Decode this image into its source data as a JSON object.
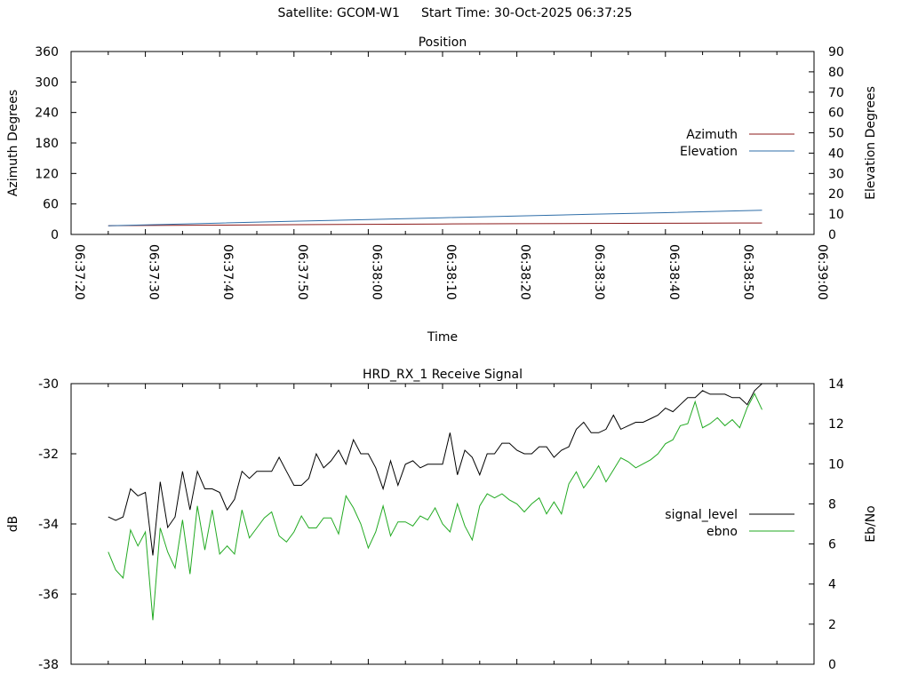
{
  "header": {
    "satellite": "Satellite: GCOM-W1",
    "start_time": "Start Time: 30-Oct-2025 06:37:25"
  },
  "chart_data": [
    {
      "type": "line",
      "title": "Position",
      "xlabel": "Time",
      "ylabel": "Azimuth Degrees",
      "y2label": "Elevation Degrees",
      "xlim": [
        "06:37:20",
        "06:39:00"
      ],
      "ylim": [
        0,
        360
      ],
      "y2lim": [
        0,
        90
      ],
      "x_tick_labels": [
        "06:37:20",
        "06:37:30",
        "06:37:40",
        "06:37:50",
        "06:38:00",
        "06:38:10",
        "06:38:20",
        "06:38:30",
        "06:38:40",
        "06:38:50",
        "06:39:00"
      ],
      "y_tick_labels": [
        "0",
        "60",
        "120",
        "180",
        "240",
        "300",
        "360"
      ],
      "y2_tick_labels": [
        "0",
        "10",
        "20",
        "30",
        "40",
        "50",
        "60",
        "70",
        "80",
        "90"
      ],
      "legend_position": "right",
      "series": [
        {
          "name": "Azimuth",
          "axis": "y",
          "color": "#8b1a1a",
          "x": [
            "06:37:25",
            "06:37:30",
            "06:37:40",
            "06:37:50",
            "06:38:00",
            "06:38:10",
            "06:38:20",
            "06:38:30",
            "06:38:40",
            "06:38:50",
            "06:38:53"
          ],
          "values": [
            17.2,
            17.6,
            18.4,
            19.2,
            20.0,
            20.6,
            21.2,
            21.7,
            22.1,
            22.5,
            22.6
          ]
        },
        {
          "name": "Elevation",
          "axis": "y2",
          "color": "#2f6ea8",
          "x": [
            "06:37:25",
            "06:37:30",
            "06:37:40",
            "06:37:50",
            "06:38:00",
            "06:38:10",
            "06:38:20",
            "06:38:30",
            "06:38:40",
            "06:38:50",
            "06:38:53"
          ],
          "values": [
            4.3,
            4.7,
            5.6,
            6.5,
            7.3,
            8.2,
            9.1,
            9.9,
            10.7,
            11.6,
            11.9
          ]
        }
      ]
    },
    {
      "type": "line",
      "title": "HRD_RX_1 Receive Signal",
      "xlabel": "",
      "ylabel": "dB",
      "y2label": "Eb/No",
      "xlim": [
        "06:37:20",
        "06:39:00"
      ],
      "ylim": [
        -38,
        -30
      ],
      "y2lim": [
        0,
        14
      ],
      "y_tick_labels": [
        "-38",
        "-36",
        "-34",
        "-32",
        "-30"
      ],
      "y2_tick_labels": [
        "0",
        "2",
        "4",
        "6",
        "8",
        "10",
        "12",
        "14"
      ],
      "legend_position": "right",
      "series": [
        {
          "name": "signal_level",
          "axis": "y",
          "color": "#000000",
          "x": [
            "06:37:25",
            "06:37:26",
            "06:37:27",
            "06:37:28",
            "06:37:29",
            "06:37:30",
            "06:37:31",
            "06:37:32",
            "06:37:33",
            "06:37:34",
            "06:37:35",
            "06:37:36",
            "06:37:37",
            "06:37:38",
            "06:37:39",
            "06:37:40",
            "06:37:41",
            "06:37:42",
            "06:37:43",
            "06:37:44",
            "06:37:45",
            "06:37:46",
            "06:37:47",
            "06:37:48",
            "06:37:49",
            "06:37:50",
            "06:37:51",
            "06:37:52",
            "06:37:53",
            "06:37:54",
            "06:37:55",
            "06:37:56",
            "06:37:57",
            "06:37:58",
            "06:37:59",
            "06:38:00",
            "06:38:01",
            "06:38:02",
            "06:38:03",
            "06:38:04",
            "06:38:05",
            "06:38:06",
            "06:38:07",
            "06:38:08",
            "06:38:09",
            "06:38:10",
            "06:38:11",
            "06:38:12",
            "06:38:13",
            "06:38:14",
            "06:38:15",
            "06:38:16",
            "06:38:17",
            "06:38:18",
            "06:38:19",
            "06:38:20",
            "06:38:21",
            "06:38:22",
            "06:38:23",
            "06:38:24",
            "06:38:25",
            "06:38:26",
            "06:38:27",
            "06:38:28",
            "06:38:29",
            "06:38:30",
            "06:38:31",
            "06:38:32",
            "06:38:33",
            "06:38:34",
            "06:38:35",
            "06:38:36",
            "06:38:37",
            "06:38:38",
            "06:38:39",
            "06:38:40",
            "06:38:41",
            "06:38:42",
            "06:38:43",
            "06:38:44",
            "06:38:45",
            "06:38:46",
            "06:38:47",
            "06:38:48",
            "06:38:49",
            "06:38:50",
            "06:38:51",
            "06:38:52",
            "06:38:53"
          ],
          "values": [
            -33.8,
            -33.9,
            -33.8,
            -33.0,
            -33.2,
            -33.1,
            -34.9,
            -32.8,
            -34.1,
            -33.8,
            -32.5,
            -33.6,
            -32.5,
            -33.0,
            -33.0,
            -33.1,
            -33.6,
            -33.3,
            -32.5,
            -32.7,
            -32.5,
            -32.5,
            -32.5,
            -32.1,
            -32.5,
            -32.9,
            -32.9,
            -32.7,
            -32.0,
            -32.4,
            -32.2,
            -31.9,
            -32.3,
            -31.6,
            -32.0,
            -32.0,
            -32.4,
            -33.0,
            -32.2,
            -32.9,
            -32.3,
            -32.2,
            -32.4,
            -32.3,
            -32.3,
            -32.3,
            -31.4,
            -32.6,
            -31.9,
            -32.1,
            -32.6,
            -32.0,
            -32.0,
            -31.7,
            -31.7,
            -31.9,
            -32.0,
            -32.0,
            -31.8,
            -31.8,
            -32.1,
            -31.9,
            -31.8,
            -31.3,
            -31.1,
            -31.4,
            -31.4,
            -31.3,
            -30.9,
            -31.3,
            -31.2,
            -31.1,
            -31.1,
            -31.0,
            -30.9,
            -30.7,
            -30.8,
            -30.6,
            -30.4,
            -30.4,
            -30.2,
            -30.3,
            -30.3,
            -30.3,
            -30.4,
            -30.4,
            -30.6,
            -30.2,
            -30.0
          ]
        },
        {
          "name": "ebno",
          "axis": "y2",
          "color": "#22aa22",
          "x": [
            "06:37:25",
            "06:37:26",
            "06:37:27",
            "06:37:28",
            "06:37:29",
            "06:37:30",
            "06:37:31",
            "06:37:32",
            "06:37:33",
            "06:37:34",
            "06:37:35",
            "06:37:36",
            "06:37:37",
            "06:37:38",
            "06:37:39",
            "06:37:40",
            "06:37:41",
            "06:37:42",
            "06:37:43",
            "06:37:44",
            "06:37:45",
            "06:37:46",
            "06:37:47",
            "06:37:48",
            "06:37:49",
            "06:37:50",
            "06:37:51",
            "06:37:52",
            "06:37:53",
            "06:37:54",
            "06:37:55",
            "06:37:56",
            "06:37:57",
            "06:37:58",
            "06:37:59",
            "06:38:00",
            "06:38:01",
            "06:38:02",
            "06:38:03",
            "06:38:04",
            "06:38:05",
            "06:38:06",
            "06:38:07",
            "06:38:08",
            "06:38:09",
            "06:38:10",
            "06:38:11",
            "06:38:12",
            "06:38:13",
            "06:38:14",
            "06:38:15",
            "06:38:16",
            "06:38:17",
            "06:38:18",
            "06:38:19",
            "06:38:20",
            "06:38:21",
            "06:38:22",
            "06:38:23",
            "06:38:24",
            "06:38:25",
            "06:38:26",
            "06:38:27",
            "06:38:28",
            "06:38:29",
            "06:38:30",
            "06:38:31",
            "06:38:32",
            "06:38:33",
            "06:38:34",
            "06:38:35",
            "06:38:36",
            "06:38:37",
            "06:38:38",
            "06:38:39",
            "06:38:40",
            "06:38:41",
            "06:38:42",
            "06:38:43",
            "06:38:44",
            "06:38:45",
            "06:38:46",
            "06:38:47",
            "06:38:48",
            "06:38:49",
            "06:38:50",
            "06:38:51",
            "06:38:52",
            "06:38:53"
          ],
          "values": [
            5.6,
            4.7,
            4.3,
            6.7,
            5.9,
            6.6,
            2.2,
            6.8,
            5.6,
            4.8,
            7.2,
            4.5,
            7.9,
            5.7,
            7.7,
            5.5,
            5.9,
            5.5,
            7.7,
            6.3,
            6.8,
            7.3,
            7.6,
            6.4,
            6.1,
            6.6,
            7.4,
            6.8,
            6.8,
            7.3,
            7.3,
            6.5,
            8.4,
            7.8,
            7.0,
            5.8,
            6.6,
            7.9,
            6.4,
            7.1,
            7.1,
            6.9,
            7.4,
            7.2,
            7.8,
            7.0,
            6.6,
            8.0,
            6.9,
            6.2,
            7.9,
            8.5,
            8.3,
            8.5,
            8.2,
            8.0,
            7.6,
            8.0,
            8.3,
            7.5,
            8.1,
            7.5,
            9.0,
            9.6,
            8.8,
            9.3,
            9.9,
            9.1,
            9.7,
            10.3,
            10.1,
            9.8,
            10.0,
            10.2,
            10.5,
            11.0,
            11.2,
            11.9,
            12.0,
            13.1,
            11.8,
            12.0,
            12.3,
            11.9,
            12.2,
            11.8,
            12.8,
            13.5,
            12.7
          ]
        }
      ]
    }
  ]
}
